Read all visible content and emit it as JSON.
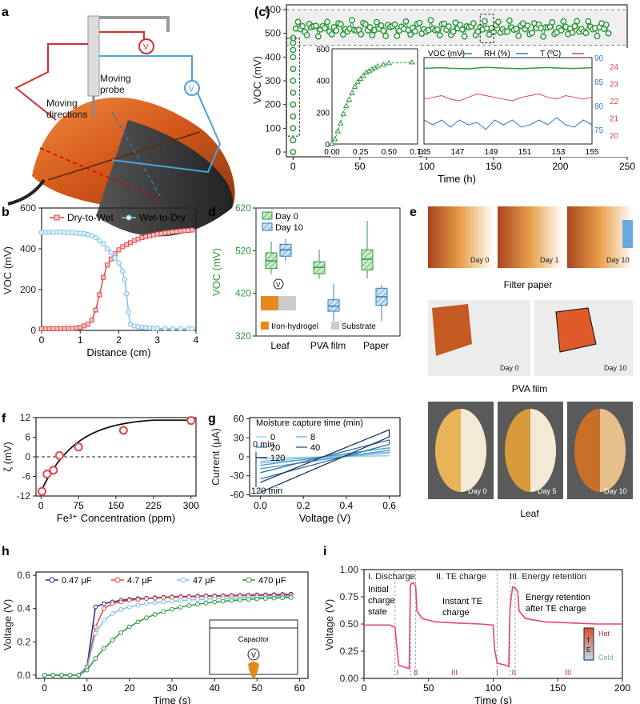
{
  "panel_labels": {
    "a": "a",
    "b": "b",
    "c": "(c)",
    "d": "d",
    "e": "e",
    "f": "f",
    "g": "g",
    "h": "h",
    "i": "i"
  },
  "colors": {
    "green": "#2e9a3c",
    "red": "#e0484b",
    "lightblue": "#7ec2e6",
    "blue": "#2d7dbf",
    "dark": "#1f4e79",
    "navy": "#2a2a7e",
    "pink": "#e8457a",
    "orange": "#e68a1f"
  },
  "panel_a": {
    "probe_label": "Moving\nprobe",
    "directions_label": "Moving\ndirections",
    "meter1": "V",
    "meter2": "V"
  },
  "chart_data": [
    {
      "id": "b",
      "type": "line",
      "xlabel": "Distance (cm)",
      "ylabel": "VOC (mV)",
      "xlim": [
        0,
        4
      ],
      "ylim": [
        0,
        600
      ],
      "xticks": [
        "0",
        "1",
        "2",
        "3",
        "4"
      ],
      "yticks": [
        "0",
        "200",
        "400",
        "600"
      ],
      "series": [
        {
          "name": "Dry-to-Wet",
          "x": [
            0,
            0.1,
            0.2,
            0.3,
            0.4,
            0.5,
            0.6,
            0.7,
            0.8,
            0.9,
            1.0,
            1.1,
            1.2,
            1.3,
            1.4,
            1.5,
            1.6,
            1.7,
            1.8,
            1.9,
            2.0,
            2.1,
            2.2,
            2.3,
            2.4,
            2.5,
            2.6,
            2.7,
            2.8,
            2.9,
            3.0,
            3.1,
            3.2,
            3.3,
            3.4,
            3.5,
            3.6,
            3.7,
            3.8,
            3.9
          ],
          "y": [
            8,
            8,
            8,
            8,
            8,
            9,
            9,
            10,
            10,
            12,
            15,
            22,
            30,
            50,
            100,
            175,
            260,
            320,
            350,
            375,
            395,
            410,
            420,
            430,
            440,
            448,
            455,
            460,
            464,
            468,
            472,
            475,
            478,
            480,
            483,
            485,
            487,
            489,
            490,
            492
          ]
        },
        {
          "name": "Wet-to-Dry",
          "x": [
            0,
            0.1,
            0.2,
            0.3,
            0.4,
            0.5,
            0.6,
            0.7,
            0.8,
            0.9,
            1.0,
            1.1,
            1.2,
            1.3,
            1.4,
            1.5,
            1.6,
            1.7,
            1.8,
            1.9,
            2.0,
            2.1,
            2.15,
            2.2,
            2.25,
            2.3,
            2.4,
            2.5,
            2.6,
            2.7,
            2.8,
            2.9,
            3.0,
            3.2,
            3.4,
            3.6,
            3.8,
            3.9
          ],
          "y": [
            480,
            480,
            481,
            481,
            482,
            482,
            481,
            480,
            479,
            478,
            476,
            474,
            470,
            465,
            455,
            440,
            425,
            400,
            380,
            355,
            330,
            290,
            250,
            180,
            90,
            30,
            22,
            18,
            15,
            13,
            12,
            10,
            10,
            9,
            8,
            8,
            8,
            8
          ]
        }
      ]
    },
    {
      "id": "c",
      "type": "scatter",
      "xlabel": "Time (h)",
      "ylabel": "VOC (mV)",
      "xlim": [
        -5,
        250
      ],
      "ylim": [
        -20,
        620
      ],
      "xticks": [
        "0",
        "50",
        "100",
        "150",
        "200",
        "250"
      ],
      "yticks": [
        "0",
        "100",
        "200",
        "300",
        "400",
        "500",
        "600"
      ],
      "band": [
        450,
        600
      ],
      "main_series": {
        "name": "VOC",
        "t_start": 2,
        "t_end": 236,
        "count": 140,
        "mean": 520,
        "amp": 35
      },
      "initial_x": 0,
      "initial_y": [
        0,
        50,
        100,
        150,
        200,
        250,
        300,
        350,
        400,
        430,
        460,
        480
      ],
      "inset1": {
        "xlim": [
          0,
          0.75
        ],
        "ylim": [
          0,
          600
        ],
        "xticks": [
          "0.00",
          "0.25",
          "0.50",
          "0.75"
        ],
        "yticks": [
          "0",
          "200",
          "400",
          "600"
        ],
        "x": [
          0,
          0.025,
          0.05,
          0.075,
          0.1,
          0.125,
          0.15,
          0.175,
          0.2,
          0.225,
          0.25,
          0.275,
          0.3,
          0.325,
          0.35,
          0.375,
          0.4,
          0.45,
          0.5,
          0.7
        ],
        "y": [
          0,
          30,
          80,
          130,
          190,
          240,
          280,
          320,
          360,
          390,
          410,
          430,
          450,
          460,
          470,
          480,
          490,
          500,
          510,
          515
        ]
      },
      "inset2": {
        "xlim": [
          145,
          155
        ],
        "xticks": [
          "145",
          "147",
          "149",
          "151",
          "153",
          "155"
        ],
        "left_ylim": [
          0,
          600
        ],
        "left_yticks": [
          "0",
          "100",
          "200",
          "300",
          "400",
          "500"
        ],
        "rh_ylim": [
          72,
          90
        ],
        "rh_ticks": [
          "75",
          "80",
          "85",
          "90"
        ],
        "t_ylim": [
          19.5,
          24.5
        ],
        "t_ticks": [
          "20",
          "21",
          "22",
          "23",
          "24"
        ],
        "legend": {
          "voc": "VOC (mV)",
          "rh": "RH (%)",
          "t": "T (ºC)"
        },
        "voc": [
          525,
          528,
          530,
          526,
          524,
          522,
          528,
          532,
          530,
          527,
          525,
          523,
          526,
          529,
          531,
          528,
          526,
          524,
          527,
          530
        ],
        "rh": [
          77,
          76,
          77,
          75.5,
          77,
          76,
          76.5,
          75,
          77,
          76,
          77,
          75.5,
          76,
          77,
          76,
          77.5,
          76,
          75.5,
          77,
          76
        ],
        "t": [
          22.1,
          22.2,
          22.3,
          22.1,
          22.0,
          22.2,
          22.4,
          22.3,
          22.2,
          22.1,
          22.0,
          22.2,
          22.3,
          22.4,
          22.2,
          22.1,
          22.3,
          22.2,
          22.1,
          22.2
        ]
      }
    },
    {
      "id": "d",
      "type": "box",
      "ylabel": "VOC (mV)",
      "ylim": [
        320,
        620
      ],
      "yticks": [
        "320",
        "420",
        "520",
        "620"
      ],
      "categories": [
        "Leaf",
        "PVA film",
        "Paper"
      ],
      "series": [
        {
          "name": "Day 0",
          "boxes": [
            {
              "min": 465,
              "q1": 478,
              "med": 496,
              "q3": 515,
              "max": 542
            },
            {
              "min": 454,
              "q1": 466,
              "med": 481,
              "q3": 494,
              "max": 522
            },
            {
              "min": 455,
              "q1": 475,
              "med": 500,
              "q3": 522,
              "max": 590
            }
          ]
        },
        {
          "name": "Day 10",
          "boxes": [
            {
              "min": 495,
              "q1": 507,
              "med": 522,
              "q3": 535,
              "max": 548
            },
            {
              "min": 355,
              "q1": 378,
              "med": 390,
              "q3": 405,
              "max": 442
            },
            {
              "min": 355,
              "q1": 392,
              "med": 412,
              "q3": 432,
              "max": 440
            }
          ]
        }
      ],
      "inset_meter": "V",
      "inset_legend": {
        "a": "Iron-hydrogel",
        "b": "Substrate"
      }
    },
    {
      "id": "f",
      "type": "line",
      "xlabel": "Fe³⁺ Concentration (ppm)",
      "ylabel": "ζ (mV)",
      "xlim": [
        -10,
        310
      ],
      "ylim": [
        -12,
        12
      ],
      "xticks": [
        "0",
        "75",
        "150",
        "225",
        "300"
      ],
      "yticks": [
        "-12",
        "-6",
        "0",
        "6",
        "12"
      ],
      "points_x": [
        2,
        12,
        25,
        37,
        75,
        165,
        300
      ],
      "points_y": [
        -10.6,
        -5.3,
        -4.1,
        0.4,
        3.0,
        8.1,
        11.1
      ]
    },
    {
      "id": "g",
      "type": "line",
      "xlabel": "Voltage (V)",
      "ylabel": "Current (μA)",
      "xlim": [
        -0.05,
        0.65
      ],
      "ylim": [
        -62,
        62
      ],
      "xticks": [
        "0.0",
        "0.2",
        "0.4",
        "0.6"
      ],
      "yticks": [
        "-60",
        "-30",
        "0",
        "30",
        "60"
      ],
      "legend_title": "Moisture capture time (min)",
      "legend": [
        "0",
        "8",
        "20",
        "40",
        "120"
      ],
      "top_label": "0 min",
      "bottom_label": "120 min",
      "loops": [
        {
          "name": "0",
          "amp": 2
        },
        {
          "name": "8",
          "amp": 8
        },
        {
          "name": "20",
          "amp": 15
        },
        {
          "name": "40",
          "amp": 28
        },
        {
          "name": "120",
          "amp": 45
        }
      ]
    },
    {
      "id": "h",
      "type": "line",
      "xlabel": "Time (s)",
      "ylabel": "Voltage (V)",
      "xlim": [
        -2,
        62
      ],
      "ylim": [
        -0.02,
        0.62
      ],
      "xticks": [
        "0",
        "10",
        "20",
        "30",
        "40",
        "50",
        "60"
      ],
      "yticks": [
        "0.0",
        "0.2",
        "0.4",
        "0.6"
      ],
      "x": [
        0,
        2,
        4,
        6,
        8,
        10,
        12,
        14,
        16,
        18,
        20,
        22,
        24,
        26,
        28,
        30,
        32,
        34,
        36,
        38,
        40,
        42,
        44,
        46,
        48,
        50,
        52,
        54,
        56,
        58
      ],
      "series": [
        {
          "name": "0.47 μF",
          "y": [
            0,
            0,
            0,
            0,
            0,
            0.05,
            0.41,
            0.43,
            0.44,
            0.45,
            0.455,
            0.46,
            0.462,
            0.465,
            0.468,
            0.47,
            0.472,
            0.473,
            0.475,
            0.476,
            0.477,
            0.478,
            0.479,
            0.48,
            0.481,
            0.482,
            0.483,
            0.484,
            0.485,
            0.486
          ]
        },
        {
          "name": "4.7 μF",
          "y": [
            0,
            0,
            0,
            0,
            0,
            0.05,
            0.29,
            0.4,
            0.43,
            0.44,
            0.45,
            0.455,
            0.46,
            0.462,
            0.465,
            0.467,
            0.469,
            0.47,
            0.472,
            0.473,
            0.474,
            0.475,
            0.476,
            0.477,
            0.478,
            0.478,
            0.479,
            0.48,
            0.48,
            0.481
          ]
        },
        {
          "name": "47 μF",
          "y": [
            0,
            0,
            0,
            0,
            0,
            0.04,
            0.25,
            0.33,
            0.37,
            0.395,
            0.41,
            0.42,
            0.43,
            0.435,
            0.44,
            0.444,
            0.448,
            0.451,
            0.454,
            0.457,
            0.459,
            0.461,
            0.463,
            0.465,
            0.467,
            0.468,
            0.469,
            0.47,
            0.471,
            0.472
          ]
        },
        {
          "name": "470 μF",
          "y": [
            0,
            0,
            0,
            0,
            0,
            0.03,
            0.1,
            0.16,
            0.21,
            0.255,
            0.29,
            0.32,
            0.345,
            0.365,
            0.382,
            0.396,
            0.408,
            0.418,
            0.426,
            0.433,
            0.439,
            0.444,
            0.448,
            0.452,
            0.455,
            0.458,
            0.461,
            0.463,
            0.465,
            0.467
          ]
        }
      ],
      "inset": {
        "cap": "Capacitor",
        "meter": "V"
      }
    },
    {
      "id": "i",
      "type": "line",
      "xlabel": "Time (s)",
      "ylabel": "Voltage (V)",
      "xlim": [
        0,
        200
      ],
      "ylim": [
        0,
        1.0
      ],
      "xticks": [
        "0",
        "50",
        "100",
        "150",
        "200"
      ],
      "yticks": [
        "0.00",
        "0.25",
        "0.50",
        "0.75",
        "1.00"
      ],
      "x": [
        0,
        20,
        24,
        26,
        27,
        35,
        35.5,
        36,
        38,
        40,
        41,
        45,
        55,
        70,
        90,
        100,
        101,
        103,
        110,
        112,
        113,
        115,
        117,
        119,
        120,
        125,
        140,
        160,
        180,
        200
      ],
      "y": [
        0.49,
        0.49,
        0.47,
        0.22,
        0.12,
        0.09,
        0.55,
        0.86,
        0.88,
        0.85,
        0.62,
        0.55,
        0.52,
        0.51,
        0.5,
        0.49,
        0.28,
        0.14,
        0.12,
        0.11,
        0.65,
        0.84,
        0.83,
        0.8,
        0.62,
        0.55,
        0.52,
        0.51,
        0.5,
        0.5
      ],
      "headers": [
        "I. Discharge",
        "II. TE charge",
        "III. Energy retention"
      ],
      "notes": {
        "initial": "Initial\ncharge\nstate",
        "instant": "Instant TE\ncharge",
        "retention": "Energy retention\nafter TE charge"
      },
      "markers": {
        "i": "I",
        "ii": "II",
        "iii": "III"
      },
      "te_inset": {
        "hot": "Hot",
        "cold": "Cold",
        "t": "T",
        "e": "E"
      }
    }
  ],
  "panel_e": {
    "top_labels": [
      "Day 0",
      "Day 1",
      "Day 10"
    ],
    "filter_title": "Filter paper",
    "pva_labels": [
      "Day 0",
      "Day 10"
    ],
    "pva_title": "PVA film",
    "leaf_labels": [
      "Day 0",
      "Day 5",
      "Day 10"
    ],
    "leaf_title": "Leaf"
  }
}
